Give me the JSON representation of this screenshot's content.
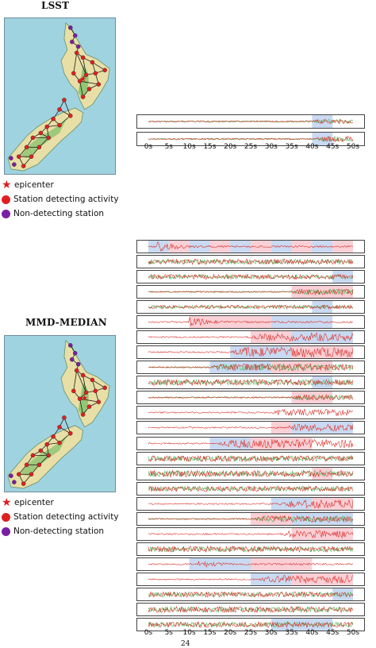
{
  "panels": [
    {
      "title": "LSST",
      "legend": [
        {
          "label": "epicenter",
          "marker": "star",
          "color": "#e11b1b"
        },
        {
          "label": "Station detecting activity",
          "marker": "dot",
          "color": "#e02020"
        },
        {
          "label": "Non-detecting station",
          "marker": "dot",
          "color": "#7a1fa2"
        }
      ],
      "time_ticks": [
        "0s",
        "5s",
        "10s",
        "15s",
        "20s",
        "25s",
        "30s",
        "35s",
        "40s",
        "45s",
        "50s"
      ],
      "traces": [
        {
          "highlights": [
            {
              "from": 40,
              "to": 45,
              "color": "blue"
            }
          ],
          "onset": 40,
          "amp": 0.35,
          "green": true
        },
        {
          "highlights": [
            {
              "from": 40,
              "to": 45,
              "color": "blue"
            }
          ],
          "onset": 41,
          "amp": 0.45,
          "green": true
        }
      ]
    },
    {
      "title": "MMD-MEDIAN",
      "legend": [
        {
          "label": "epicenter",
          "marker": "star",
          "color": "#e11b1b"
        },
        {
          "label": "Station detecting activity",
          "marker": "dot",
          "color": "#e02020"
        },
        {
          "label": "Non-detecting station",
          "marker": "dot",
          "color": "#7a1fa2"
        }
      ],
      "time_ticks": [
        "0s",
        "5s",
        "10s",
        "15s",
        "20s",
        "25s",
        "30s",
        "35s",
        "40s",
        "45s",
        "50s"
      ],
      "traces": [
        {
          "highlights": [
            {
              "from": 0,
              "to": 5,
              "color": "blue"
            },
            {
              "from": 5,
              "to": 10,
              "color": "red"
            },
            {
              "from": 10,
              "to": 15,
              "color": "blue"
            },
            {
              "from": 15,
              "to": 20,
              "color": "red"
            },
            {
              "from": 20,
              "to": 25,
              "color": "blue"
            },
            {
              "from": 25,
              "to": 30,
              "color": "red"
            },
            {
              "from": 30,
              "to": 35,
              "color": "blue"
            },
            {
              "from": 35,
              "to": 40,
              "color": "red"
            },
            {
              "from": 40,
              "to": 45,
              "color": "blue"
            },
            {
              "from": 45,
              "to": 50,
              "color": "red"
            }
          ],
          "onset": 2,
          "amp": 0.9,
          "green": false,
          "decay": true
        },
        {
          "highlights": [],
          "onset": 0,
          "amp": 0.45,
          "green": true
        },
        {
          "highlights": [
            {
              "from": 45,
              "to": 50,
              "color": "blue"
            }
          ],
          "onset": 0,
          "amp": 0.4,
          "green": true
        },
        {
          "highlights": [
            {
              "from": 35,
              "to": 50,
              "color": "red"
            }
          ],
          "onset": 35,
          "amp": 0.5,
          "green": true
        },
        {
          "highlights": [
            {
              "from": 40,
              "to": 45,
              "color": "blue"
            }
          ],
          "onset": 0,
          "amp": 0.3,
          "green": true
        },
        {
          "highlights": [
            {
              "from": 10,
              "to": 30,
              "color": "red"
            },
            {
              "from": 30,
              "to": 45,
              "color": "blue"
            }
          ],
          "onset": 10,
          "amp": 0.8,
          "green": false,
          "decay": true
        },
        {
          "highlights": [
            {
              "from": 25,
              "to": 35,
              "color": "red"
            },
            {
              "from": 35,
              "to": 50,
              "color": "blue"
            }
          ],
          "onset": 25,
          "amp": 0.7,
          "green": false
        },
        {
          "highlights": [
            {
              "from": 20,
              "to": 35,
              "color": "blue"
            },
            {
              "from": 35,
              "to": 50,
              "color": "red"
            }
          ],
          "onset": 20,
          "amp": 0.85,
          "green": false
        },
        {
          "highlights": [
            {
              "from": 15,
              "to": 30,
              "color": "blue"
            },
            {
              "from": 30,
              "to": 45,
              "color": "red"
            }
          ],
          "onset": 15,
          "amp": 0.6,
          "green": true
        },
        {
          "highlights": [
            {
              "from": 40,
              "to": 45,
              "color": "blue"
            }
          ],
          "onset": 0,
          "amp": 0.5,
          "green": true
        },
        {
          "highlights": [
            {
              "from": 35,
              "to": 45,
              "color": "red"
            }
          ],
          "onset": 35,
          "amp": 0.45,
          "green": true
        },
        {
          "highlights": [],
          "onset": 30,
          "amp": 0.55,
          "green": false
        },
        {
          "highlights": [
            {
              "from": 30,
              "to": 35,
              "color": "red"
            },
            {
              "from": 35,
              "to": 50,
              "color": "blue"
            }
          ],
          "onset": 33,
          "amp": 0.6,
          "green": false
        },
        {
          "highlights": [
            {
              "from": 15,
              "to": 25,
              "color": "blue"
            },
            {
              "from": 25,
              "to": 40,
              "color": "red"
            }
          ],
          "onset": 17,
          "amp": 0.75,
          "green": false
        },
        {
          "highlights": [],
          "onset": 0,
          "amp": 0.5,
          "green": true
        },
        {
          "highlights": [
            {
              "from": 40,
              "to": 45,
              "color": "red"
            }
          ],
          "onset": 0,
          "amp": 0.55,
          "green": true
        },
        {
          "highlights": [],
          "onset": 0,
          "amp": 0.45,
          "green": true
        },
        {
          "highlights": [
            {
              "from": 30,
              "to": 40,
              "color": "blue"
            },
            {
              "from": 40,
              "to": 50,
              "color": "red"
            }
          ],
          "onset": 32,
          "amp": 0.7,
          "green": false
        },
        {
          "highlights": [
            {
              "from": 25,
              "to": 35,
              "color": "red"
            },
            {
              "from": 35,
              "to": 50,
              "color": "blue"
            }
          ],
          "onset": 26,
          "amp": 0.55,
          "green": true
        },
        {
          "highlights": [
            {
              "from": 35,
              "to": 50,
              "color": "red"
            }
          ],
          "onset": 32,
          "amp": 0.65,
          "green": false
        },
        {
          "highlights": [],
          "onset": 0,
          "amp": 0.5,
          "green": true
        },
        {
          "highlights": [
            {
              "from": 10,
              "to": 25,
              "color": "blue"
            },
            {
              "from": 25,
              "to": 40,
              "color": "red"
            }
          ],
          "onset": 12,
          "amp": 0.7,
          "green": false,
          "decay": true
        },
        {
          "highlights": [
            {
              "from": 25,
              "to": 35,
              "color": "blue"
            },
            {
              "from": 35,
              "to": 50,
              "color": "red"
            }
          ],
          "onset": 27,
          "amp": 0.7,
          "green": false
        },
        {
          "highlights": [
            {
              "from": 45,
              "to": 50,
              "color": "blue"
            }
          ],
          "onset": 0,
          "amp": 0.45,
          "green": true
        },
        {
          "highlights": [],
          "onset": 0,
          "amp": 0.5,
          "green": true
        },
        {
          "highlights": [
            {
              "from": 30,
              "to": 45,
              "color": "blue"
            }
          ],
          "onset": 0,
          "amp": 0.45,
          "green": true
        }
      ]
    }
  ],
  "colors": {
    "sea": "#9fd3df",
    "land": "#e8dfa6",
    "land_green": "#6dbb5f",
    "highlight_blue": "#c9daf2",
    "highlight_red": "#f9d0d6",
    "trace_red": "#d9322b",
    "trace_green": "#3fb34f",
    "edge": "#1b1b1b",
    "detect_station": "#e02020",
    "non_detect_station": "#7a1fa2"
  },
  "footer": "24"
}
